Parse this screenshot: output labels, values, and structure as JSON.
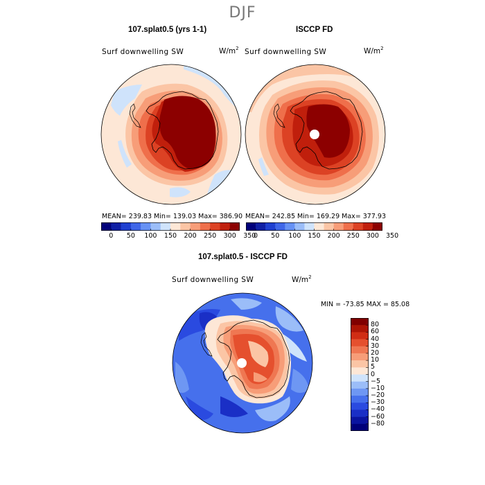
{
  "season": "DJF",
  "panels": [
    {
      "title": "107.splat0.5 (yrs 1-1)",
      "variable": "Surf downwelling SW",
      "unit_base": "W/m",
      "unit_exp": "2",
      "stats": "MEAN= 239.83   Min= 139.03   Max= 386.90"
    },
    {
      "title": "ISCCP FD",
      "variable": "Surf downwelling SW",
      "unit_base": "W/m",
      "unit_exp": "2",
      "stats": "MEAN= 242.85   Min= 169.29   Max= 377.93"
    },
    {
      "title": "107.splat0.5 - ISCCP FD",
      "variable": "Surf downwelling SW",
      "unit_base": "W/m",
      "unit_exp": "2",
      "stats": "MIN = -73.85  MAX =  85.08"
    }
  ],
  "abs_colorbar": {
    "colors": [
      "#00007a",
      "#0f1fa4",
      "#1f3fd0",
      "#3f66e8",
      "#6691f4",
      "#9bbdf8",
      "#cfe3fb",
      "#fde7d6",
      "#fbc5a5",
      "#f79d78",
      "#ef6f4b",
      "#dc4224",
      "#c01f0c",
      "#8c0000"
    ],
    "tick_labels": [
      "0",
      "50",
      "100",
      "150",
      "200",
      "250",
      "300",
      "350"
    ]
  },
  "diff_colorbar": {
    "colors": [
      "#00007a",
      "#0a14a0",
      "#1a2fc6",
      "#2a4ae0",
      "#4670ec",
      "#6e97f3",
      "#9bbdf8",
      "#cfe3fb",
      "#fde7d6",
      "#fbc5a5",
      "#f79d78",
      "#ef7752",
      "#e5502e",
      "#d02d14",
      "#ad1505",
      "#800000"
    ],
    "tick_labels": [
      "80",
      "60",
      "40",
      "30",
      "20",
      "10",
      "5",
      "0",
      "-5",
      "-10",
      "-20",
      "-30",
      "-40",
      "-60",
      "-80"
    ]
  }
}
